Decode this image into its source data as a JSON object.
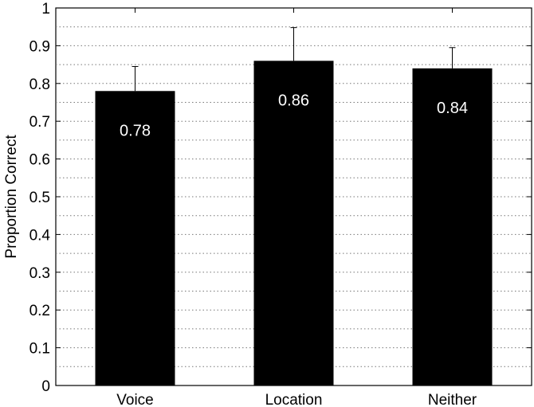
{
  "chart_data": {
    "type": "bar",
    "categories": [
      "Voice",
      "Location",
      "Neither"
    ],
    "values": [
      0.78,
      0.86,
      0.84
    ],
    "errors_upper": [
      0.845,
      0.948,
      0.895
    ],
    "data_labels": [
      "0.78",
      "0.86",
      "0.84"
    ],
    "title": "",
    "xlabel": "",
    "ylabel": "Proportion Correct",
    "ylim": [
      0,
      1
    ],
    "yticks": [
      0,
      0.1,
      0.2,
      0.3,
      0.4,
      0.5,
      0.6,
      0.7,
      0.8,
      0.9,
      1
    ],
    "ytick_labels": [
      "0",
      "0.1",
      "0.2",
      "0.3",
      "0.4",
      "0.5",
      "0.6",
      "0.7",
      "0.8",
      "0.9",
      "1"
    ],
    "grid": "horizontal dotted every 0.05",
    "bar_color": "#000000",
    "data_label_color": "#ffffff"
  }
}
